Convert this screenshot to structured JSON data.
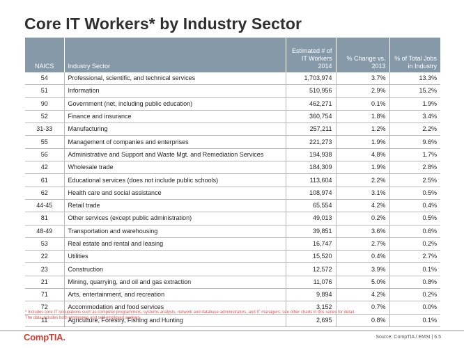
{
  "slide": {
    "title": "Core IT Workers* by Industry Sector"
  },
  "table": {
    "headers": [
      "NAICS",
      "Industry Sector",
      "Estimated # of IT Workers 2014",
      "% Change vs. 2013",
      "% of Total Jobs in Industry"
    ],
    "rows": [
      [
        "54",
        "Professional, scientific, and technical services",
        "1,703,974",
        "3.7%",
        "13.3%"
      ],
      [
        "51",
        "Information",
        "510,956",
        "2.9%",
        "15.2%"
      ],
      [
        "90",
        "Government (net, including public education)",
        "462,271",
        "0.1%",
        "1.9%"
      ],
      [
        "52",
        "Finance and insurance",
        "360,754",
        "1.8%",
        "3.4%"
      ],
      [
        "31-33",
        "Manufacturing",
        "257,211",
        "1.2%",
        "2.2%"
      ],
      [
        "55",
        "Management of companies and enterprises",
        "221,273",
        "1.9%",
        "9.6%"
      ],
      [
        "56",
        "Administrative and Support and Waste Mgt. and Remediation Services",
        "194,938",
        "4.8%",
        "1.7%"
      ],
      [
        "42",
        "Wholesale trade",
        "184,309",
        "1.9%",
        "2.8%"
      ],
      [
        "61",
        "Educational services (does not include public schools)",
        "113,604",
        "2.2%",
        "2.5%"
      ],
      [
        "62",
        "Health care and social assistance",
        "108,974",
        "3.1%",
        "0.5%"
      ],
      [
        "44-45",
        "Retail trade",
        "65,554",
        "4.2%",
        "0.4%"
      ],
      [
        "81",
        "Other services (except public administration)",
        "49,013",
        "0.2%",
        "0.5%"
      ],
      [
        "48-49",
        "Transportation and warehousing",
        "39,851",
        "3.6%",
        "0.6%"
      ],
      [
        "53",
        "Real estate and rental and leasing",
        "16,747",
        "2.7%",
        "0.2%"
      ],
      [
        "22",
        "Utilities",
        "15,520",
        "0.4%",
        "2.7%"
      ],
      [
        "23",
        "Construction",
        "12,572",
        "3.9%",
        "0.1%"
      ],
      [
        "21",
        "Mining, quarrying, and oil and gas extraction",
        "11,076",
        "5.0%",
        "0.8%"
      ],
      [
        "71",
        "Arts, entertainment, and recreation",
        "9,894",
        "4.2%",
        "0.2%"
      ],
      [
        "72",
        "Accommodation and food services",
        "3,152",
        "0.7%",
        "0.0%"
      ],
      [
        "11",
        "Agriculture, Forestry, Fishing and Hunting",
        "2,695",
        "0.8%",
        "0.1%"
      ]
    ]
  },
  "footnotes": {
    "line1": "* Includes core IT occupations such as computer programmers, systems analysts, network and database administrators, and IT managers; see other charts in this series for detail.",
    "line2": "The data includes both employees and self-employed workers."
  },
  "footer": {
    "logo": "CompTIA.",
    "source": "Source: CompTIA / EMSI | 6.5"
  },
  "colors": {
    "header_bg": "#8699a8",
    "logo_red": "#d43d2f",
    "footnote_red": "#d9534f"
  }
}
